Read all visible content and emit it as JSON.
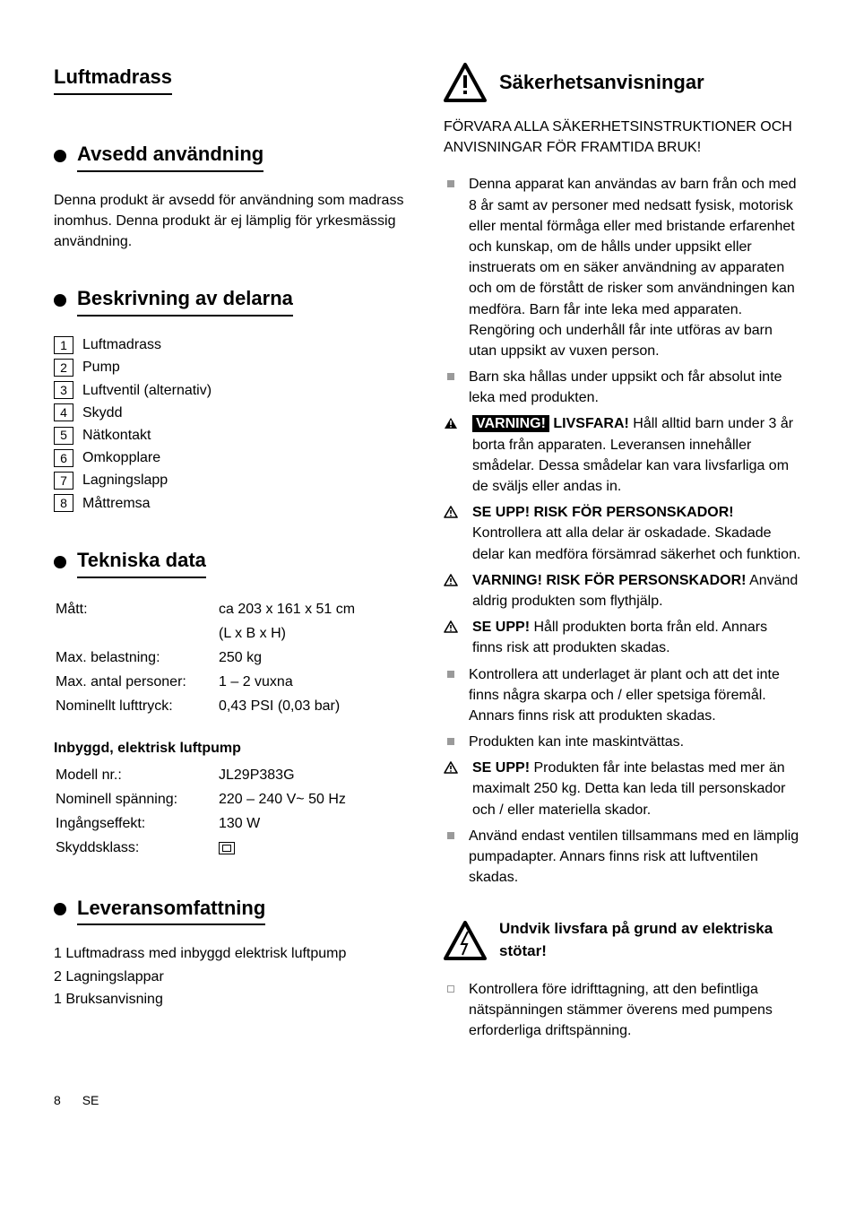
{
  "main_title": "Luftmadrass",
  "section_intended": {
    "title": "Avsedd användning",
    "text": "Denna produkt är avsedd för användning som madrass inomhus. Denna produkt är ej lämplig för yrkesmässig användning."
  },
  "section_parts": {
    "title": "Beskrivning av delarna",
    "items": [
      {
        "n": "1",
        "label": "Luftmadrass"
      },
      {
        "n": "2",
        "label": "Pump"
      },
      {
        "n": "3",
        "label": "Luftventil (alternativ)"
      },
      {
        "n": "4",
        "label": "Skydd"
      },
      {
        "n": "5",
        "label": "Nätkontakt"
      },
      {
        "n": "6",
        "label": "Omkopplare"
      },
      {
        "n": "7",
        "label": "Lagningslapp"
      },
      {
        "n": "8",
        "label": "Måttremsa"
      }
    ]
  },
  "section_tech": {
    "title": "Tekniska data",
    "rows": [
      {
        "k": "Mått:",
        "v": "ca 203 x 161 x 51 cm"
      },
      {
        "k": "",
        "v": "(L x B x H)"
      },
      {
        "k": "Max. belastning:",
        "v": "250 kg"
      },
      {
        "k": "Max. antal personer:",
        "v": "1 – 2 vuxna"
      },
      {
        "k": "Nominellt lufttryck:",
        "v": "0,43 PSI (0,03 bar)"
      }
    ],
    "pump_title": "Inbyggd, elektrisk luftpump",
    "pump_rows": [
      {
        "k": "Modell nr.:",
        "v": "JL29P383G"
      },
      {
        "k": "Nominell spänning:",
        "v": "220 – 240 V~ 50 Hz"
      },
      {
        "k": "Ingångseffekt:",
        "v": "130 W"
      },
      {
        "k": "Skyddsklass:",
        "v": "__SQUARE__"
      }
    ]
  },
  "section_scope": {
    "title": "Leveransomfattning",
    "lines": [
      "1 Luftmadrass med inbyggd elektrisk luftpump",
      "2 Lagningslappar",
      "1 Bruksanvisning"
    ]
  },
  "safety": {
    "title": "Säkerhetsanvisningar",
    "pre": "FÖRVARA ALLA SÄKERHETSINSTRUKTIONER OCH ANVISNINGAR FÖR FRAMTIDA BRUK!",
    "items": [
      {
        "type": "sq",
        "html": "Denna apparat kan användas av barn från och med 8 år samt av personer med nedsatt fysisk, motorisk eller mental förmåga eller med bristande erfarenhet och kunskap, om de hålls under uppsikt eller instruerats om en säker användning av apparaten och om de förstått de risker som användningen kan medföra. Barn får inte leka med apparaten. Rengöring och underhåll får inte utföras av barn utan uppsikt av vuxen person."
      },
      {
        "type": "sq",
        "html": "Barn ska hållas under uppsikt och får absolut inte leka med produkten."
      },
      {
        "type": "tri_varning",
        "prefix": "VARNING!",
        "bold": "LIVSFARA!",
        "text": " Håll alltid barn under 3 år borta från apparaten. Leveransen innehåller smådelar. Dessa smådelar kan vara livsfarliga om de sväljs eller andas in."
      },
      {
        "type": "tri",
        "bold": "SE UPP! RISK FÖR PERSONSKADOR!",
        "text": " Kontrollera att alla delar är oskadade. Skadade delar kan medföra försämrad säkerhet och funktion."
      },
      {
        "type": "tri",
        "bold": "VARNING! RISK FÖR PERSONSKADOR!",
        "text": " Använd aldrig produkten som flythjälp."
      },
      {
        "type": "tri",
        "bold": "SE UPP!",
        "text": " Håll produkten borta från eld. Annars finns risk att produkten skadas."
      },
      {
        "type": "sq",
        "html": "Kontrollera att underlaget är plant och att det inte finns några skarpa och / eller spetsiga föremål. Annars finns risk att produkten skadas."
      },
      {
        "type": "sq",
        "html": "Produkten kan inte maskintvättas."
      },
      {
        "type": "tri",
        "bold": "SE UPP!",
        "text": " Produkten får inte belastas med mer än maximalt 250 kg. Detta kan leda till person­skador och / eller materiella skador."
      },
      {
        "type": "sq",
        "html": "Använd endast ventilen tillsammans med en lämplig pumpadapter. Annars finns risk att luft­ventilen skadas."
      }
    ],
    "electric_title": "Undvik livsfara på grund av elektriska stötar!",
    "electric_items": [
      {
        "type": "sq-empty",
        "html": "Kontrollera före idrifttagning, att den befintliga nätspänningen stämmer överens med pumpens erforderliga driftspänning."
      }
    ]
  },
  "footer": {
    "page": "8",
    "lang": "SE"
  }
}
